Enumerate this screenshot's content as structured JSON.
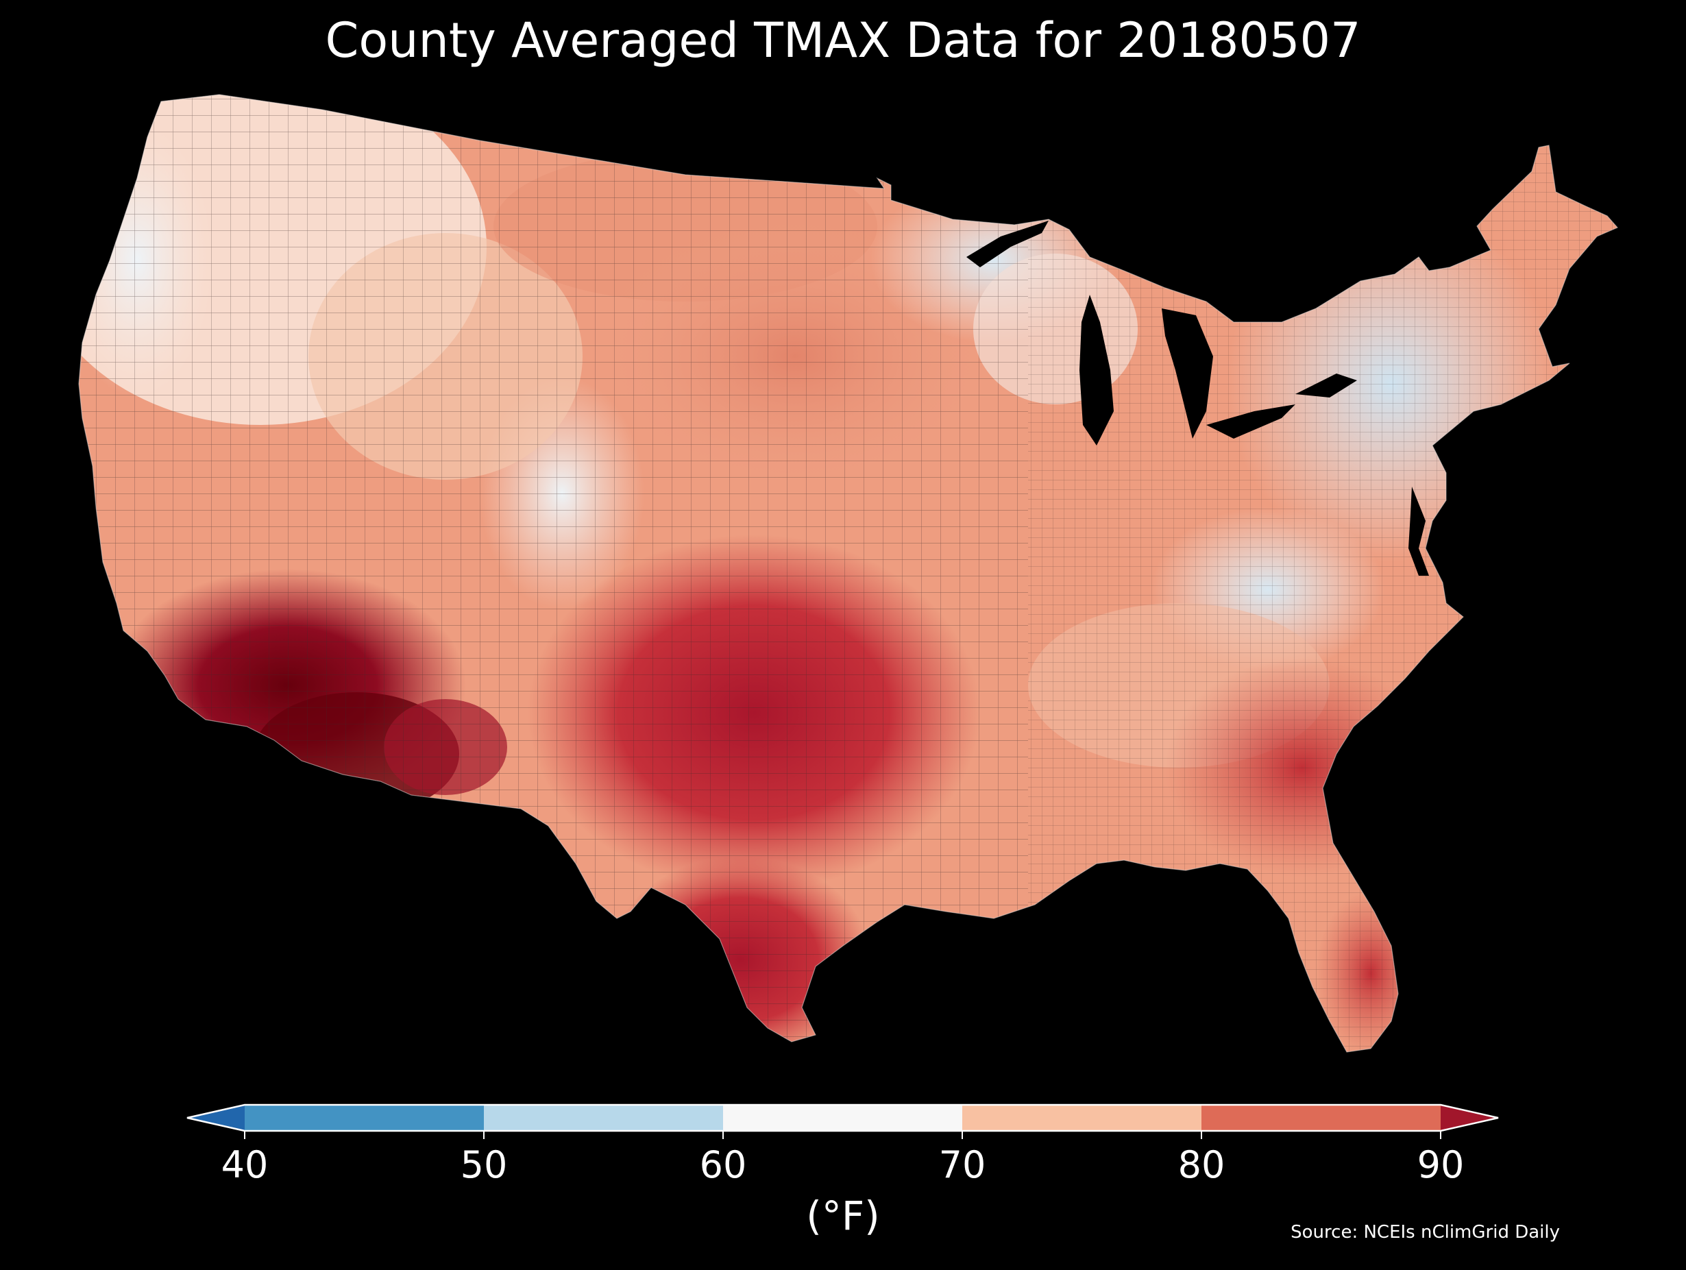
{
  "title": "County Averaged TMAX Data for 20180507",
  "colorbar": {
    "unit_label": "(°F)",
    "ticks": [
      "40",
      "50",
      "60",
      "70",
      "80",
      "90"
    ],
    "bins": [
      {
        "from": 40,
        "to": 50,
        "color": "#4393c3"
      },
      {
        "from": 50,
        "to": 60,
        "color": "#b7d8ea"
      },
      {
        "from": 60,
        "to": 70,
        "color": "#f7f7f7"
      },
      {
        "from": 70,
        "to": 80,
        "color": "#f8c1a2"
      },
      {
        "from": 80,
        "to": 90,
        "color": "#de6b57"
      }
    ],
    "under_color": "#2166ac",
    "over_color": "#a1162b",
    "extend": "both"
  },
  "source": "Source: NCEIs nClimGrid Daily",
  "map": {
    "region": "Contiguous United States, county level",
    "background": "#000000",
    "ocean_and_lakes_color": "#000000",
    "county_border_color": "#3a2a2a"
  }
}
